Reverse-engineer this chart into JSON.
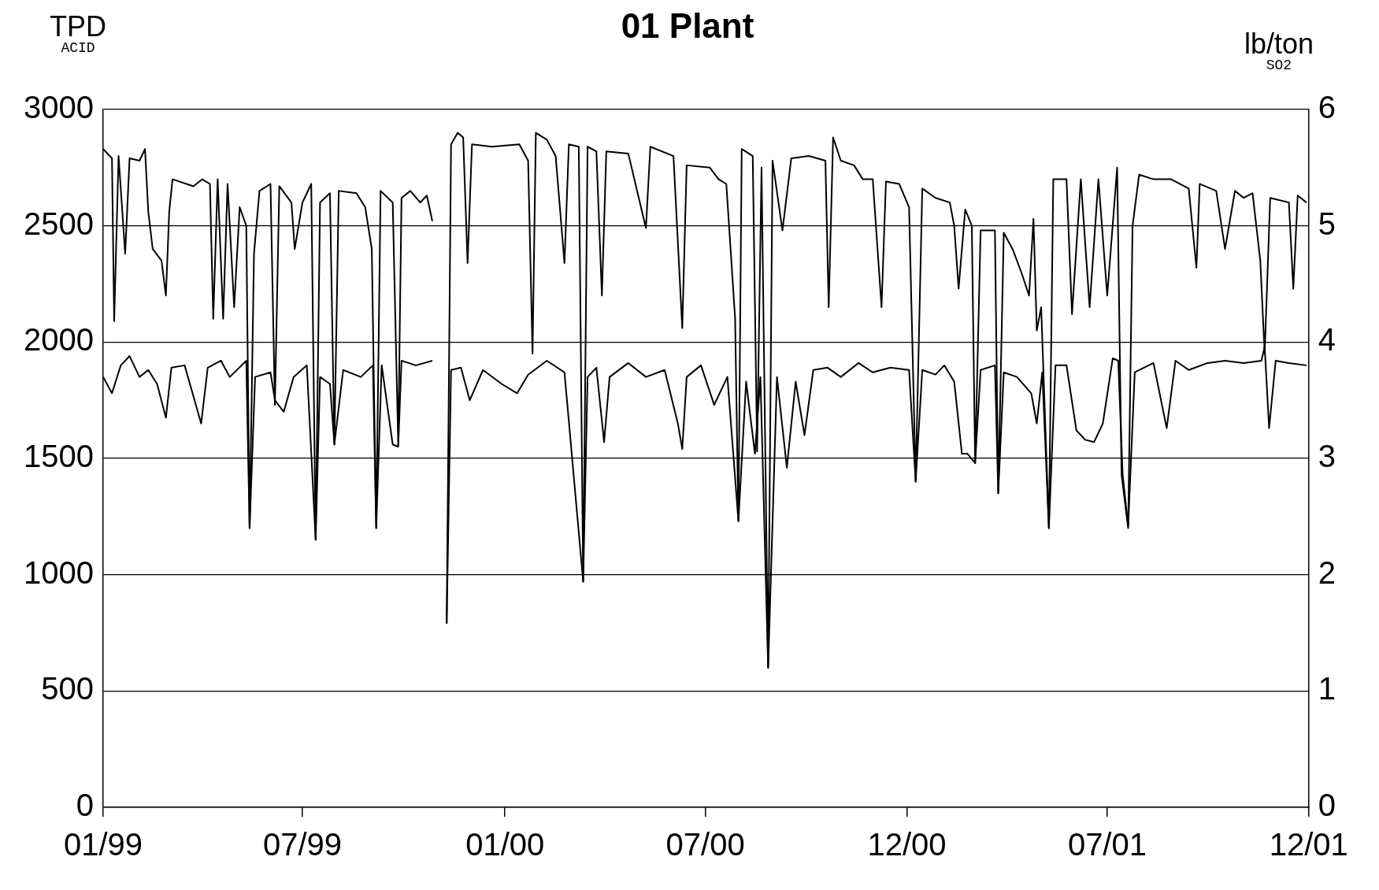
{
  "chart_data": {
    "type": "line",
    "title": "01 Plant",
    "ylabel": "TPD$_{ACID}$",
    "y2label": "lb/ton$_{SO2}$",
    "xlim": [
      "1999-01-01",
      "2001-12-31"
    ],
    "xticks": [
      {
        "value": "1999-01-01",
        "label": "01/99"
      },
      {
        "value": "1999-07-01",
        "label": "07/99"
      },
      {
        "value": "2000-01-01",
        "label": "01/00"
      },
      {
        "value": "2000-07-01",
        "label": "07/00"
      },
      {
        "value": "2000-12-31",
        "label": "12/00"
      },
      {
        "value": "2001-07-01",
        "label": "07/01"
      },
      {
        "value": "2001-12-31",
        "label": "12/01"
      }
    ],
    "ylim": [
      0,
      3000
    ],
    "yticks": [
      0,
      500,
      1000,
      1500,
      2000,
      2500,
      3000
    ],
    "y2lim": [
      0,
      6
    ],
    "y2ticks": [
      0,
      1,
      2,
      3,
      4,
      5,
      6
    ],
    "grid": "y",
    "legend": false,
    "marker": "none",
    "line_style": "solid",
    "series": [
      {
        "color": "#000000",
        "x": [
          "1999-01-01",
          "1999-01-09",
          "1999-01-11",
          "1999-01-15",
          "1999-01-21",
          "1999-01-25",
          "1999-02-03",
          "1999-02-08",
          "1999-02-11",
          "1999-02-15",
          "1999-02-23",
          "1999-02-27",
          "1999-03-02",
          "1999-03-05",
          "1999-03-24",
          "1999-04-01",
          "1999-04-08",
          "1999-04-11",
          "1999-04-15",
          "1999-04-20",
          "1999-04-24",
          "1999-04-30",
          "1999-05-05",
          "1999-05-11",
          "1999-05-14",
          "1999-05-18",
          "1999-05-23",
          "1999-06-02",
          "1999-06-06",
          "1999-06-10",
          "1999-06-21",
          "1999-06-24",
          "1999-07-01",
          "1999-07-09",
          "1999-07-13",
          "1999-07-17",
          "1999-07-26",
          "1999-07-30",
          "1999-08-03",
          "1999-08-19",
          "1999-08-27",
          "1999-09-02",
          "1999-09-06",
          "1999-09-10",
          "1999-09-21",
          "1999-09-26",
          "1999-09-29",
          "1999-10-07",
          "1999-10-16",
          "1999-10-22",
          "1999-10-27",
          "1999-11-03",
          "1999-11-09",
          "1999-11-13",
          "1999-11-19",
          "1999-11-24",
          "1999-11-28",
          "1999-12-02",
          "1999-12-20",
          "2000-01-14",
          "2000-01-22",
          "2000-01-26",
          "2000-01-29",
          "2000-02-08",
          "2000-02-16",
          "2000-02-24",
          "2000-02-28",
          "2000-03-08",
          "2000-03-12",
          "2000-03-16",
          "2000-03-24",
          "2000-03-29",
          "2000-04-02",
          "2000-04-22",
          "2000-05-08",
          "2000-05-12",
          "2000-06-02",
          "2000-06-10",
          "2000-06-14",
          "2000-07-05",
          "2000-07-13",
          "2000-07-20",
          "2000-07-25",
          "2000-07-28",
          "2000-07-31",
          "2000-08-03",
          "2000-08-13",
          "2000-08-17",
          "2000-08-21",
          "2000-08-27",
          "2000-08-31",
          "2000-09-09",
          "2000-09-17",
          "2000-10-03",
          "2000-10-18",
          "2000-10-21",
          "2000-10-25",
          "2000-11-01",
          "2000-11-13",
          "2000-11-21",
          "2000-11-30",
          "2000-12-08",
          "2000-12-12",
          "2000-12-24",
          "2001-01-02",
          "2001-01-06",
          "2001-01-08",
          "2001-01-14",
          "2001-01-26",
          "2001-02-08",
          "2001-02-12",
          "2001-02-16",
          "2001-02-22",
          "2001-02-28",
          "2001-03-03",
          "2001-03-08",
          "2001-03-21",
          "2001-03-24",
          "2001-03-29",
          "2001-04-06",
          "2001-04-14",
          "2001-04-21",
          "2001-04-25",
          "2001-04-28",
          "2001-05-02",
          "2001-05-09",
          "2001-05-13",
          "2001-05-25",
          "2001-05-30",
          "2001-06-07",
          "2001-06-15",
          "2001-06-23",
          "2001-07-01",
          "2001-07-10",
          "2001-07-14",
          "2001-07-20",
          "2001-07-24",
          "2001-07-30",
          "2001-08-12",
          "2001-08-28",
          "2001-09-13",
          "2001-09-20",
          "2001-09-23",
          "2001-10-08",
          "2001-10-16",
          "2001-10-25",
          "2001-11-02",
          "2001-11-10",
          "2001-11-17",
          "2001-11-21",
          "2001-11-26",
          "2001-12-13",
          "2001-12-17",
          "2001-12-21",
          "2001-12-29"
        ],
        "values": [
          2830,
          2790,
          2090,
          2800,
          2380,
          2790,
          2780,
          2830,
          2560,
          2400,
          2350,
          2200,
          2560,
          2700,
          2670,
          2700,
          2680,
          2100,
          2700,
          2100,
          2680,
          2150,
          2580,
          2500,
          1200,
          2380,
          2650,
          2680,
          1730,
          2670,
          2600,
          2400,
          2600,
          2680,
          1150,
          2600,
          2640,
          1560,
          2650,
          2640,
          2580,
          2400,
          1200,
          2650,
          2600,
          1560,
          2620,
          2650,
          2600,
          2630,
          2520,
          null,
          790,
          2850,
          2900,
          2880,
          2340,
          2850,
          2840,
          2850,
          2780,
          1950,
          2900,
          2870,
          2800,
          2340,
          2850,
          2840,
          970,
          2840,
          2820,
          2200,
          2820,
          2810,
          2490,
          2840,
          2800,
          2060,
          2760,
          2750,
          2700,
          2680,
          2320,
          2100,
          1230,
          2830,
          2800,
          1530,
          2750,
          600,
          2780,
          2480,
          2790,
          2800,
          2780,
          2150,
          2880,
          2780,
          2760,
          2700,
          2700,
          2150,
          2690,
          2680,
          2580,
          1800,
          1400,
          2660,
          2620,
          2600,
          2500,
          2230,
          2570,
          2500,
          1480,
          2480,
          2480,
          1350,
          2470,
          2400,
          2300,
          2200,
          2530,
          2050,
          2150,
          1200,
          2700,
          2700,
          2120,
          2700,
          2150,
          2700,
          2200,
          2750,
          1430,
          1200,
          2500,
          2720,
          2700,
          2700,
          2660,
          2320,
          2680,
          2650,
          2400,
          2650,
          2620,
          2640,
          2350,
          1950,
          2620,
          2600,
          2230,
          2630,
          2600
        ]
      },
      {
        "color": "#000000",
        "axis": "y2",
        "x": [
          "1999-01-01",
          "1999-01-09",
          "1999-01-17",
          "1999-01-25",
          "1999-02-03",
          "1999-02-11",
          "1999-02-19",
          "1999-02-27",
          "1999-03-04",
          "1999-03-16",
          "1999-03-31",
          "1999-04-06",
          "1999-04-18",
          "1999-04-26",
          "1999-05-11",
          "1999-05-14",
          "1999-05-19",
          "1999-06-02",
          "1999-06-06",
          "1999-06-14",
          "1999-06-23",
          "1999-07-05",
          "1999-07-13",
          "1999-07-17",
          "1999-07-26",
          "1999-07-30",
          "1999-08-07",
          "1999-08-23",
          "1999-09-03",
          "1999-09-06",
          "1999-09-11",
          "1999-09-21",
          "1999-09-26",
          "1999-09-29",
          "1999-10-12",
          "1999-10-27",
          "1999-11-03",
          "1999-11-09",
          "1999-11-13",
          "1999-11-22",
          "1999-11-30",
          "1999-12-12",
          "1999-12-29",
          "2000-01-12",
          "2000-01-22",
          "2000-02-08",
          "2000-02-24",
          "2000-03-12",
          "2000-03-16",
          "2000-03-24",
          "2000-03-31",
          "2000-04-05",
          "2000-04-22",
          "2000-05-08",
          "2000-05-25",
          "2000-06-06",
          "2000-06-10",
          "2000-06-14",
          "2000-06-27",
          "2000-07-09",
          "2000-07-21",
          "2000-07-31",
          "2000-08-07",
          "2000-08-15",
          "2000-08-20",
          "2000-08-27",
          "2000-09-04",
          "2000-09-13",
          "2000-09-21",
          "2000-09-29",
          "2000-10-07",
          "2000-10-20",
          "2000-11-01",
          "2000-11-17",
          "2000-11-30",
          "2000-12-16",
          "2001-01-02",
          "2001-01-08",
          "2001-01-14",
          "2001-01-26",
          "2001-02-03",
          "2001-02-12",
          "2001-02-19",
          "2001-02-24",
          "2001-03-03",
          "2001-03-08",
          "2001-03-21",
          "2001-03-24",
          "2001-03-29",
          "2001-04-10",
          "2001-04-23",
          "2001-04-28",
          "2001-05-03",
          "2001-05-09",
          "2001-05-15",
          "2001-05-25",
          "2001-06-03",
          "2001-06-11",
          "2001-06-19",
          "2001-06-27",
          "2001-07-06",
          "2001-07-11",
          "2001-07-15",
          "2001-07-20",
          "2001-07-26",
          "2001-08-12",
          "2001-08-24",
          "2001-09-01",
          "2001-09-13",
          "2001-09-30",
          "2001-10-16",
          "2001-11-02",
          "2001-11-18",
          "2001-11-21",
          "2001-11-25",
          "2001-12-01",
          "2001-12-13",
          "2001-12-29"
        ],
        "values": [
          3.7,
          3.56,
          3.8,
          3.88,
          3.7,
          3.76,
          3.64,
          3.35,
          3.78,
          3.8,
          3.3,
          3.78,
          3.84,
          3.7,
          3.84,
          2.4,
          3.7,
          3.74,
          3.5,
          3.4,
          3.7,
          3.8,
          2.3,
          3.7,
          3.64,
          3.12,
          3.76,
          3.7,
          3.8,
          2.4,
          3.8,
          3.12,
          3.1,
          3.84,
          3.8,
          3.84,
          null,
          1.58,
          3.76,
          3.78,
          3.5,
          3.76,
          3.64,
          3.56,
          3.72,
          3.84,
          3.74,
          1.94,
          3.7,
          3.78,
          3.14,
          3.7,
          3.82,
          3.7,
          3.76,
          3.3,
          3.08,
          3.7,
          3.8,
          3.46,
          3.7,
          2.46,
          3.66,
          3.04,
          3.7,
          1.2,
          3.7,
          2.92,
          3.66,
          3.2,
          3.76,
          3.78,
          3.7,
          3.82,
          3.74,
          3.78,
          3.76,
          2.8,
          3.76,
          3.72,
          3.8,
          3.66,
          3.04,
          3.04,
          2.96,
          3.76,
          3.8,
          2.7,
          3.74,
          3.7,
          3.56,
          3.3,
          3.74,
          2.4,
          3.8,
          3.8,
          3.24,
          3.16,
          3.14,
          3.3,
          3.86,
          3.84,
          2.86,
          2.42,
          3.74,
          3.82,
          3.26,
          3.84,
          3.76,
          3.82,
          3.84,
          3.82,
          3.84,
          3.96,
          3.26,
          3.84,
          3.82,
          3.8
        ]
      }
    ]
  }
}
